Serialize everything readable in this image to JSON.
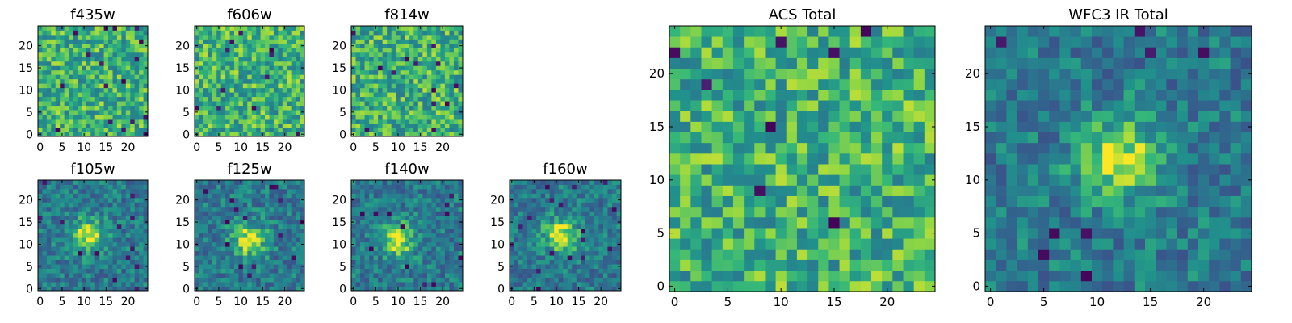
{
  "chart_data": [
    {
      "type": "heatmap",
      "title": "f435w",
      "xlim": [
        -0.5,
        24.5
      ],
      "ylim": [
        -0.5,
        24.5
      ],
      "xticks": [
        0,
        5,
        10,
        15,
        20
      ],
      "yticks": [
        0,
        5,
        10,
        15,
        20
      ],
      "colormap": "viridis",
      "grid_size": [
        25,
        25
      ],
      "origin": "lower",
      "structure": "noise"
    },
    {
      "type": "heatmap",
      "title": "f606w",
      "xlim": [
        -0.5,
        24.5
      ],
      "ylim": [
        -0.5,
        24.5
      ],
      "xticks": [
        0,
        5,
        10,
        15,
        20
      ],
      "yticks": [
        0,
        5,
        10,
        15,
        20
      ],
      "colormap": "viridis",
      "grid_size": [
        25,
        25
      ],
      "origin": "lower",
      "structure": "noise"
    },
    {
      "type": "heatmap",
      "title": "f814w",
      "xlim": [
        -0.5,
        24.5
      ],
      "ylim": [
        -0.5,
        24.5
      ],
      "xticks": [
        0,
        5,
        10,
        15,
        20
      ],
      "yticks": [
        0,
        5,
        10,
        15,
        20
      ],
      "colormap": "viridis",
      "grid_size": [
        25,
        25
      ],
      "origin": "lower",
      "structure": "noise with weak central source"
    },
    {
      "type": "heatmap",
      "title": "f105w",
      "xlim": [
        -0.5,
        24.5
      ],
      "ylim": [
        -0.5,
        24.5
      ],
      "xticks": [
        0,
        5,
        10,
        15,
        20
      ],
      "yticks": [
        0,
        5,
        10,
        15,
        20
      ],
      "colormap": "viridis",
      "grid_size": [
        25,
        25
      ],
      "origin": "lower",
      "source_center": [
        11,
        12
      ],
      "structure": "central source"
    },
    {
      "type": "heatmap",
      "title": "f125w",
      "xlim": [
        -0.5,
        24.5
      ],
      "ylim": [
        -0.5,
        24.5
      ],
      "xticks": [
        0,
        5,
        10,
        15,
        20
      ],
      "yticks": [
        0,
        5,
        10,
        15,
        20
      ],
      "colormap": "viridis",
      "grid_size": [
        25,
        25
      ],
      "origin": "lower",
      "source_center": [
        12,
        11
      ],
      "structure": "central source"
    },
    {
      "type": "heatmap",
      "title": "f140w",
      "xlim": [
        -0.5,
        24.5
      ],
      "ylim": [
        -0.5,
        24.5
      ],
      "xticks": [
        0,
        5,
        10,
        15,
        20
      ],
      "yticks": [
        0,
        5,
        10,
        15,
        20
      ],
      "colormap": "viridis",
      "grid_size": [
        25,
        25
      ],
      "origin": "lower",
      "source_center": [
        10,
        11
      ],
      "structure": "central source"
    },
    {
      "type": "heatmap",
      "title": "f160w",
      "xlim": [
        -0.5,
        24.5
      ],
      "ylim": [
        -0.5,
        24.5
      ],
      "xticks": [
        0,
        5,
        10,
        15,
        20
      ],
      "yticks": [
        0,
        5,
        10,
        15,
        20
      ],
      "colormap": "viridis",
      "grid_size": [
        25,
        25
      ],
      "origin": "lower",
      "source_center": [
        11,
        12
      ],
      "structure": "central source"
    },
    {
      "type": "heatmap",
      "title": "ACS Total",
      "xlim": [
        -0.5,
        24.5
      ],
      "ylim": [
        -0.5,
        24.5
      ],
      "xticks": [
        0,
        5,
        10,
        15,
        20
      ],
      "yticks": [
        0,
        5,
        10,
        15,
        20
      ],
      "colormap": "viridis",
      "grid_size": [
        25,
        25
      ],
      "origin": "lower",
      "structure": "noise"
    },
    {
      "type": "heatmap",
      "title": "WFC3 IR Total",
      "xlim": [
        -0.5,
        24.5
      ],
      "ylim": [
        -0.5,
        24.5
      ],
      "xticks": [
        0,
        5,
        10,
        15,
        20
      ],
      "yticks": [
        0,
        5,
        10,
        15,
        20
      ],
      "colormap": "viridis",
      "grid_size": [
        25,
        25
      ],
      "origin": "lower",
      "source_center": [
        12,
        12
      ],
      "structure": "central source"
    }
  ]
}
